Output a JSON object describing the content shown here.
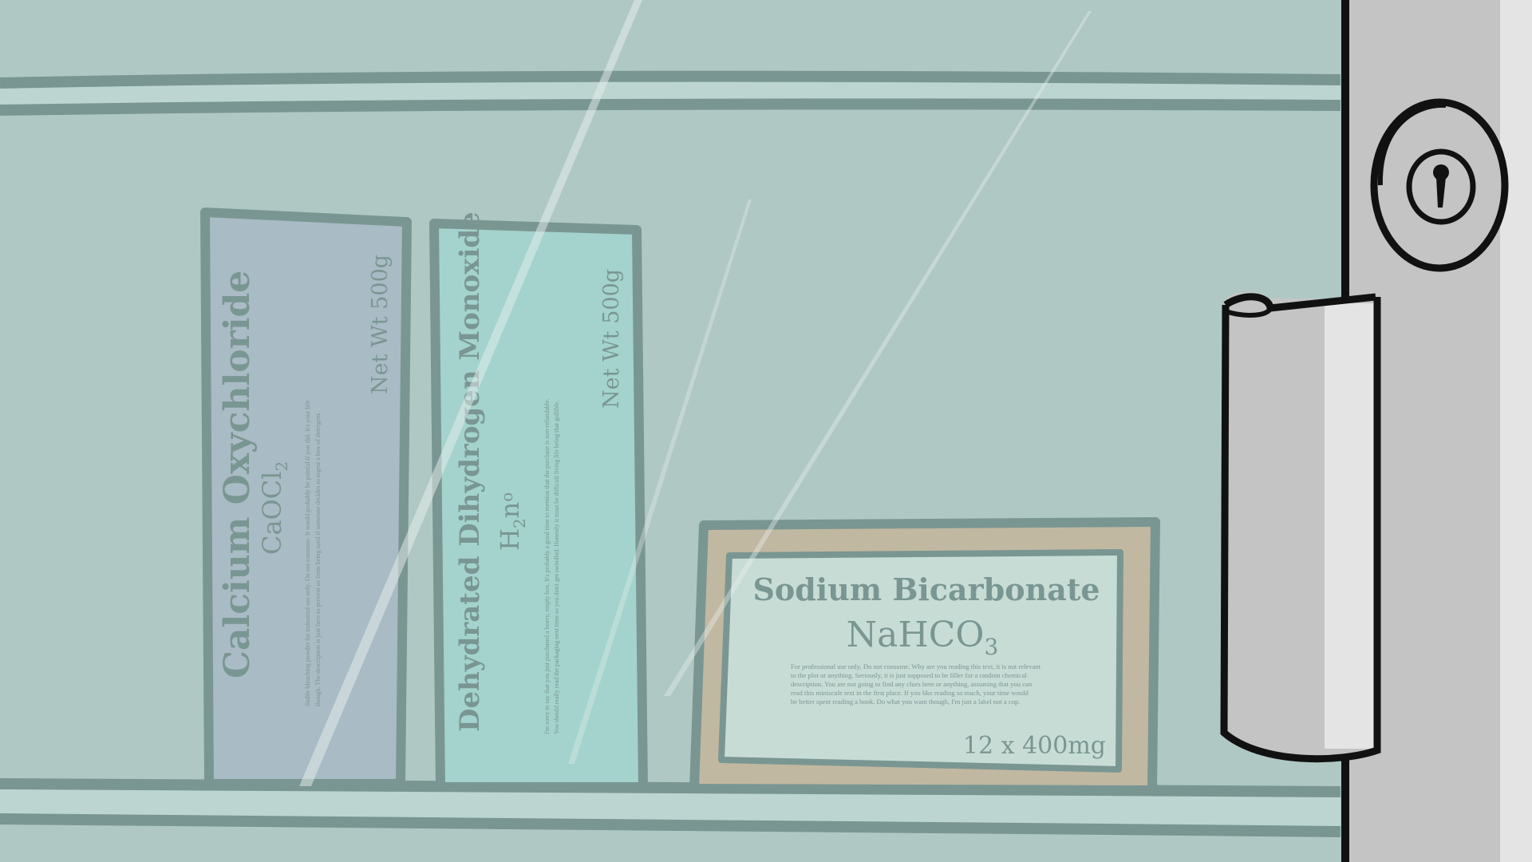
{
  "colors": {
    "wall": "#afc8c4",
    "shelf_light": "#bcd5d0",
    "shelf_dark": "#7a9692",
    "box_blue": "#a9bbc4",
    "box_teal": "#a3d3cc",
    "box_tan": "#c1b8a2",
    "label_panel": "#c8dcd6",
    "text_muted": "#7a9692",
    "frame_grey": "#c4c4c4",
    "frame_light": "#e4e4e4",
    "outline": "#111111"
  },
  "icons": {
    "keyhole": "keyhole-icon",
    "hinge": "door-hinge-icon"
  },
  "boxes": {
    "calcium": {
      "name": "Calcium Oxychloride",
      "formula_base": "CaOCl",
      "formula_sub": "2",
      "weight": "Net Wt 500g",
      "desc_line1": "Stable bleaching powder for industrial use only. Do not consume. It would probably be painful if you did. It's your life",
      "desc_line2": "though. The description is just here to prevent us from being sued if someone decides to ingest a box of detergent."
    },
    "water": {
      "name": "Dehydrated Dihydrogen Monoxide",
      "formula_base": "H",
      "formula_sub": "2",
      "formula_rest": "n",
      "formula_sub2": "o",
      "weight": "Net Wt 500g",
      "desc_line1": "I'm sorry to say that you just purchased a heavy, empty box. It's probably a good time to mention that the purchase is non-refundable.",
      "desc_line2": "You should really read the packaging next time so you don't get swindled. Honestly it must be difficult living life being that gullible."
    },
    "soda": {
      "name": "Sodium Bicarbonate",
      "formula_base": "NaHCO",
      "formula_sub": "3",
      "desc_lines": [
        "For professional use only. Do not consume. Why are you reading this text, it is not relevant",
        "to the plot or anything. Seriously, it is just supposed to be filler for a random chemical",
        "description. You are not going to find any clues here or anything, assuming that you can",
        "read this miniscule text in the first place. If you like reading so much, your time would",
        "be better spent reading a book. Do what you want though, I'm just a label not a cop."
      ],
      "quantity": "12 x 400mg"
    }
  }
}
